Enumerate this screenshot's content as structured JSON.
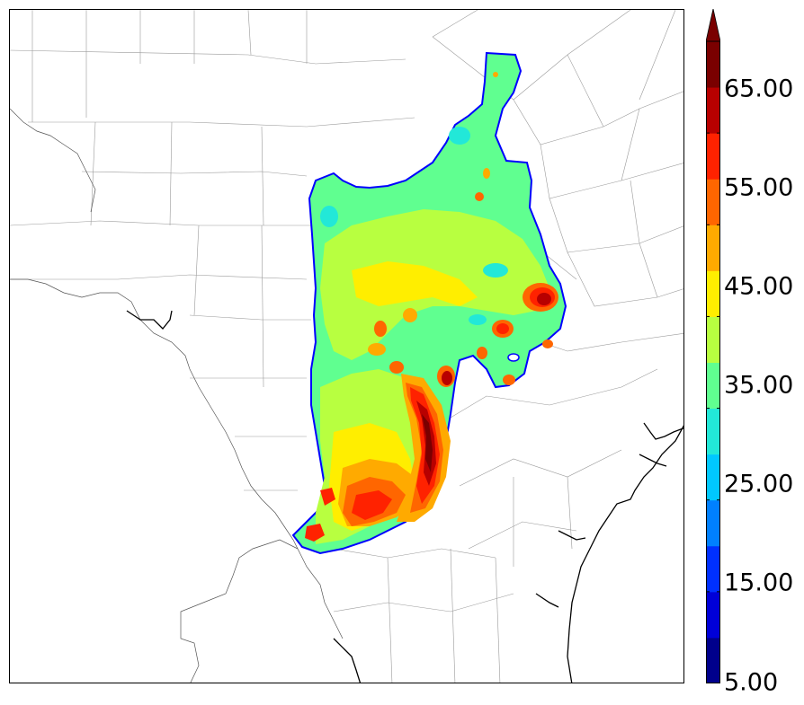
{
  "colorbar": {
    "labels": [
      "65.00",
      "55.00",
      "45.00",
      "35.00",
      "25.00",
      "15.00",
      "5.00"
    ],
    "colors": [
      "#00008c",
      "#0000d8",
      "#0030ff",
      "#0080ff",
      "#00c8ff",
      "#22e8d8",
      "#60ff90",
      "#b8ff40",
      "#ffee00",
      "#ffaa00",
      "#ff6600",
      "#ff2200",
      "#b80000",
      "#7a0000"
    ],
    "extend_color": "#7a0000"
  },
  "map": {
    "background": "#ffffff",
    "border_color": "#9a9a9a",
    "coast_color": "#000000",
    "field_outline_color": "#0000ff"
  }
}
